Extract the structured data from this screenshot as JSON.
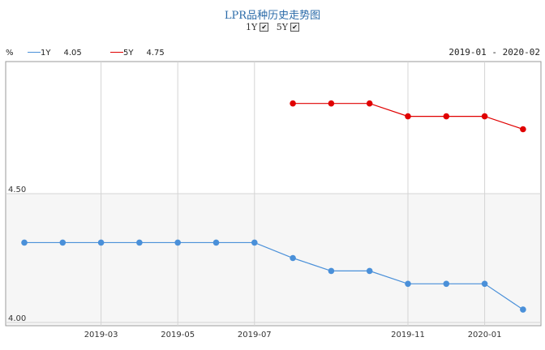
{
  "header": {
    "title": "LPR品种历史走势图",
    "toggles": [
      {
        "label": "1Y",
        "checked": true
      },
      {
        "label": "5Y",
        "checked": true
      }
    ]
  },
  "unit": "%",
  "legend": [
    {
      "name": "1Y",
      "value": "4.05",
      "color": "#4a90d9"
    },
    {
      "name": "5Y",
      "value": "4.75",
      "color": "#e00000"
    }
  ],
  "date_range": "2019-01 - 2020-02",
  "chart_data": {
    "type": "line",
    "title": "LPR品种历史走势图",
    "ylabel": "%",
    "xlabel": "",
    "ylim": [
      4.0,
      4.95
    ],
    "yticks": [
      4.0,
      4.5
    ],
    "ytick_labels": [
      "4.00",
      "4.50"
    ],
    "x": [
      "2019-01",
      "2019-02",
      "2019-03",
      "2019-04",
      "2019-05",
      "2019-06",
      "2019-07",
      "2019-08",
      "2019-09",
      "2019-10",
      "2019-11",
      "2019-12",
      "2020-01",
      "2020-02"
    ],
    "xtick_labels": [
      "2019-03",
      "2019-05",
      "2019-07",
      "2019-11",
      "2020-01"
    ],
    "series": [
      {
        "name": "1Y",
        "color": "#4a90d9",
        "values": [
          4.31,
          4.31,
          4.31,
          4.31,
          4.31,
          4.31,
          4.31,
          4.25,
          4.2,
          4.2,
          4.15,
          4.15,
          4.15,
          4.05
        ]
      },
      {
        "name": "5Y",
        "color": "#e00000",
        "values": [
          null,
          null,
          null,
          null,
          null,
          null,
          null,
          4.85,
          4.85,
          4.85,
          4.8,
          4.8,
          4.8,
          4.75
        ]
      }
    ],
    "grid": true,
    "legend_position": "top-left"
  }
}
